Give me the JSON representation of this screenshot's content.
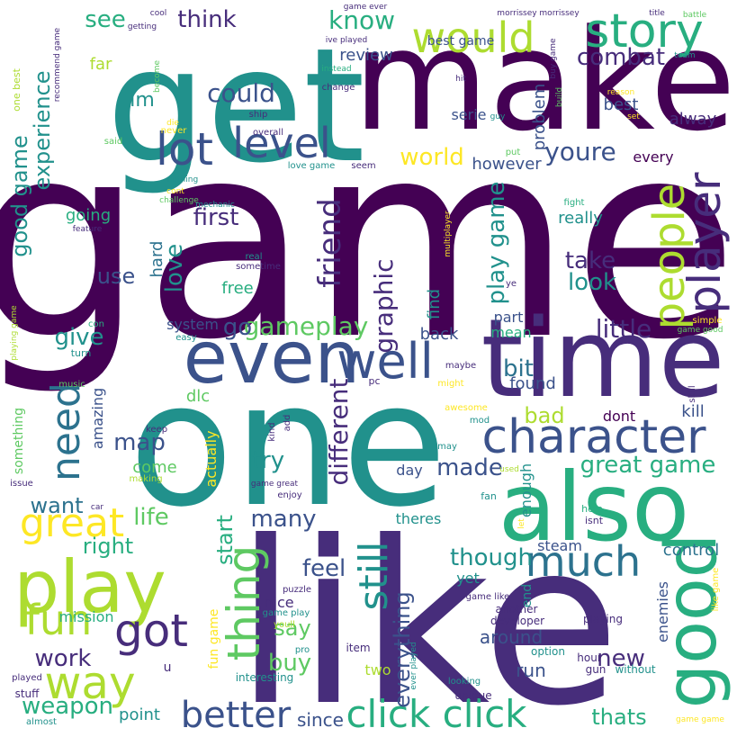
{
  "title": "",
  "palette": {
    "dark_purple": "#440154",
    "indigo": "#472d7b",
    "slate_blue": "#3b528b",
    "steel_blue": "#2c728e",
    "teal": "#21918c",
    "green_teal": "#28ae80",
    "green": "#5ec962",
    "lime": "#addc30",
    "yellow": "#fde725"
  },
  "words": [
    {
      "id": "game",
      "text": "game"
    },
    {
      "id": "get",
      "text": "get"
    },
    {
      "id": "make",
      "text": "make"
    },
    {
      "id": "one",
      "text": "one"
    },
    {
      "id": "like",
      "text": "like"
    },
    {
      "id": "time",
      "text": "time"
    },
    {
      "id": "also",
      "text": "also"
    },
    {
      "id": "even",
      "text": "even"
    },
    {
      "id": "play",
      "text": "play"
    },
    {
      "id": "good",
      "text": "good"
    },
    {
      "id": "would",
      "text": "would"
    },
    {
      "id": "story",
      "text": "story"
    },
    {
      "id": "level",
      "text": "level"
    },
    {
      "id": "lot",
      "text": "lot"
    },
    {
      "id": "character",
      "text": "character"
    },
    {
      "id": "well",
      "text": "well"
    },
    {
      "id": "player",
      "text": "player"
    },
    {
      "id": "people",
      "text": "people"
    },
    {
      "id": "much",
      "text": "much"
    },
    {
      "id": "thing",
      "text": "thing"
    },
    {
      "id": "got",
      "text": "got"
    },
    {
      "id": "fun",
      "text": "fun"
    },
    {
      "id": "way",
      "text": "way"
    },
    {
      "id": "great",
      "text": "great"
    },
    {
      "id": "need",
      "text": "need"
    },
    {
      "id": "still",
      "text": "still"
    },
    {
      "id": "better",
      "text": "better"
    },
    {
      "id": "click_click",
      "text": "click click"
    },
    {
      "id": "know",
      "text": "know"
    },
    {
      "id": "see",
      "text": "see"
    },
    {
      "id": "think",
      "text": "think"
    },
    {
      "id": "could",
      "text": "could"
    },
    {
      "id": "combat",
      "text": "combat"
    },
    {
      "id": "youre",
      "text": "youre"
    },
    {
      "id": "friend",
      "text": "friend"
    },
    {
      "id": "first",
      "text": "first"
    },
    {
      "id": "experience",
      "text": "experience"
    },
    {
      "id": "good_game",
      "text": "good game"
    },
    {
      "id": "world",
      "text": "world"
    },
    {
      "id": "gameplay",
      "text": "gameplay"
    },
    {
      "id": "graphic",
      "text": "graphic"
    },
    {
      "id": "take",
      "text": "take"
    },
    {
      "id": "look",
      "text": "look"
    },
    {
      "id": "little",
      "text": "little"
    },
    {
      "id": "play_game",
      "text": "play game"
    },
    {
      "id": "different",
      "text": "different"
    },
    {
      "id": "great_game",
      "text": "great game"
    },
    {
      "id": "made",
      "text": "made"
    },
    {
      "id": "many",
      "text": "many"
    },
    {
      "id": "life",
      "text": "life"
    },
    {
      "id": "map",
      "text": "map"
    },
    {
      "id": "give",
      "text": "give"
    },
    {
      "id": "work",
      "text": "work"
    },
    {
      "id": "weapon",
      "text": "weapon"
    },
    {
      "id": "new",
      "text": "new"
    },
    {
      "id": "though",
      "text": "though"
    },
    {
      "id": "try",
      "text": "try"
    },
    {
      "id": "feel",
      "text": "feel"
    },
    {
      "id": "buy",
      "text": "buy"
    },
    {
      "id": "say",
      "text": "say"
    },
    {
      "id": "love",
      "text": "love"
    },
    {
      "id": "use",
      "text": "use"
    },
    {
      "id": "go",
      "text": "go"
    },
    {
      "id": "want",
      "text": "want"
    },
    {
      "id": "right",
      "text": "right"
    },
    {
      "id": "bit",
      "text": "bit"
    },
    {
      "id": "bad",
      "text": "bad"
    },
    {
      "id": "everything",
      "text": "everything"
    },
    {
      "id": "start",
      "text": "start"
    },
    {
      "id": "thats",
      "text": "thats"
    },
    {
      "id": "since",
      "text": "since"
    },
    {
      "id": "point",
      "text": "point"
    },
    {
      "id": "run",
      "text": "run"
    },
    {
      "id": "around",
      "text": "around"
    },
    {
      "id": "im",
      "text": "im"
    },
    {
      "id": "best",
      "text": "best"
    },
    {
      "id": "alway",
      "text": "alway"
    },
    {
      "id": "every",
      "text": "every"
    },
    {
      "id": "really",
      "text": "really"
    },
    {
      "id": "however",
      "text": "however"
    },
    {
      "id": "problem",
      "text": "problem"
    },
    {
      "id": "review",
      "text": "review"
    },
    {
      "id": "serie",
      "text": "serie"
    },
    {
      "id": "best_game",
      "text": "best game"
    },
    {
      "id": "back",
      "text": "back"
    },
    {
      "id": "found",
      "text": "found"
    },
    {
      "id": "dont",
      "text": "dont"
    },
    {
      "id": "kill",
      "text": "kill"
    },
    {
      "id": "control",
      "text": "control"
    },
    {
      "id": "steam",
      "text": "steam"
    },
    {
      "id": "enemies",
      "text": "enemies"
    },
    {
      "id": "part",
      "text": "part"
    },
    {
      "id": "mean",
      "text": "mean"
    },
    {
      "id": "find",
      "text": "find"
    },
    {
      "id": "going",
      "text": "going"
    },
    {
      "id": "hard",
      "text": "hard"
    },
    {
      "id": "free",
      "text": "free"
    },
    {
      "id": "system",
      "text": "system"
    },
    {
      "id": "dlc",
      "text": "dlc"
    },
    {
      "id": "come",
      "text": "come"
    },
    {
      "id": "day",
      "text": "day"
    },
    {
      "id": "yet",
      "text": "yet"
    },
    {
      "id": "theres",
      "text": "theres"
    },
    {
      "id": "enough",
      "text": "enough"
    },
    {
      "id": "end",
      "text": "end"
    },
    {
      "id": "nice",
      "text": "nice"
    },
    {
      "id": "mission",
      "text": "mission"
    },
    {
      "id": "two",
      "text": "two"
    },
    {
      "id": "far",
      "text": "far"
    },
    {
      "id": "amazing",
      "text": "amazing"
    },
    {
      "id": "actually",
      "text": "actually"
    },
    {
      "id": "something",
      "text": "something"
    },
    {
      "id": "fun_game",
      "text": "fun game"
    },
    {
      "id": "u",
      "text": "u"
    },
    {
      "id": "playing",
      "text": "playing"
    },
    {
      "id": "developer",
      "text": "developer"
    },
    {
      "id": "another",
      "text": "another"
    },
    {
      "id": "option",
      "text": "option"
    },
    {
      "id": "hour",
      "text": "hour"
    },
    {
      "id": "gun",
      "text": "gun"
    },
    {
      "id": "without",
      "text": "without"
    },
    {
      "id": "interesting",
      "text": "interesting"
    },
    {
      "id": "stuff",
      "text": "stuff"
    },
    {
      "id": "almost",
      "text": "almost"
    },
    {
      "id": "played",
      "text": "played"
    },
    {
      "id": "unique",
      "text": "unique"
    },
    {
      "id": "looking",
      "text": "looking"
    },
    {
      "id": "item",
      "text": "item"
    },
    {
      "id": "pro",
      "text": "pro"
    },
    {
      "id": "game_play",
      "text": "game play"
    },
    {
      "id": "youll",
      "text": "youll"
    },
    {
      "id": "puzzle",
      "text": "puzzle"
    },
    {
      "id": "ever_played",
      "text": "ever played"
    },
    {
      "id": "game_like",
      "text": "game like"
    },
    {
      "id": "like_game",
      "text": "like game"
    },
    {
      "id": "game_game",
      "text": "game game"
    },
    {
      "id": "fan",
      "text": "fan"
    },
    {
      "id": "isnt",
      "text": "isnt"
    },
    {
      "id": "help",
      "text": "help"
    },
    {
      "id": "let",
      "text": "let"
    },
    {
      "id": "used",
      "text": "used"
    },
    {
      "id": "may",
      "text": "may"
    },
    {
      "id": "mod",
      "text": "mod"
    },
    {
      "id": "awesome",
      "text": "awesome"
    },
    {
      "id": "might",
      "text": "might"
    },
    {
      "id": "maybe",
      "text": "maybe"
    },
    {
      "id": "pc",
      "text": "pc"
    },
    {
      "id": "skill",
      "text": "skill"
    },
    {
      "id": "simple",
      "text": "simple"
    },
    {
      "id": "game_good",
      "text": "game good"
    },
    {
      "id": "con",
      "text": "con"
    },
    {
      "id": "turn",
      "text": "turn"
    },
    {
      "id": "easy",
      "text": "easy"
    },
    {
      "id": "music",
      "text": "music"
    },
    {
      "id": "playing_game",
      "text": "playing game"
    },
    {
      "id": "issue",
      "text": "issue"
    },
    {
      "id": "car",
      "text": "car"
    },
    {
      "id": "making",
      "text": "making"
    },
    {
      "id": "enjoy",
      "text": "enjoy"
    },
    {
      "id": "game_great",
      "text": "game great"
    },
    {
      "id": "kind",
      "text": "kind"
    },
    {
      "id": "add",
      "text": "add"
    },
    {
      "id": "keep",
      "text": "keep"
    },
    {
      "id": "real",
      "text": "real"
    },
    {
      "id": "sometime",
      "text": "sometime"
    },
    {
      "id": "feature",
      "text": "feature"
    },
    {
      "id": "mechanic",
      "text": "mechanic"
    },
    {
      "id": "challenge",
      "text": "challenge"
    },
    {
      "id": "cont",
      "text": "cont"
    },
    {
      "id": "nothing",
      "text": "nothing"
    },
    {
      "id": "multiplayer",
      "text": "multiplayer"
    },
    {
      "id": "fight",
      "text": "fight"
    },
    {
      "id": "ye",
      "text": "ye"
    },
    {
      "id": "never",
      "text": "never"
    },
    {
      "id": "die",
      "text": "die"
    },
    {
      "id": "said",
      "text": "said"
    },
    {
      "id": "ship",
      "text": "ship"
    },
    {
      "id": "overall",
      "text": "overall"
    },
    {
      "id": "love_game",
      "text": "love game"
    },
    {
      "id": "seem",
      "text": "seem"
    },
    {
      "id": "put",
      "text": "put"
    },
    {
      "id": "guy",
      "text": "guy"
    },
    {
      "id": "build",
      "text": "build"
    },
    {
      "id": "buy_game",
      "text": "buy game"
    },
    {
      "id": "reason",
      "text": "reason"
    },
    {
      "id": "set",
      "text": "set"
    },
    {
      "id": "hit",
      "text": "hit"
    },
    {
      "id": "change",
      "text": "change"
    },
    {
      "id": "instead",
      "text": "instead"
    },
    {
      "id": "become",
      "text": "become"
    },
    {
      "id": "recommend_game",
      "text": "recommend game"
    },
    {
      "id": "one_best",
      "text": "one best"
    },
    {
      "id": "cool",
      "text": "cool"
    },
    {
      "id": "getting",
      "text": "getting"
    },
    {
      "id": "game_ever",
      "text": "game ever"
    },
    {
      "id": "ive_played",
      "text": "ive played"
    },
    {
      "id": "morrissey_morrissey",
      "text": "morrissey morrissey"
    },
    {
      "id": "title",
      "text": "title"
    },
    {
      "id": "battle",
      "text": "battle"
    },
    {
      "id": "team",
      "text": "team"
    }
  ]
}
